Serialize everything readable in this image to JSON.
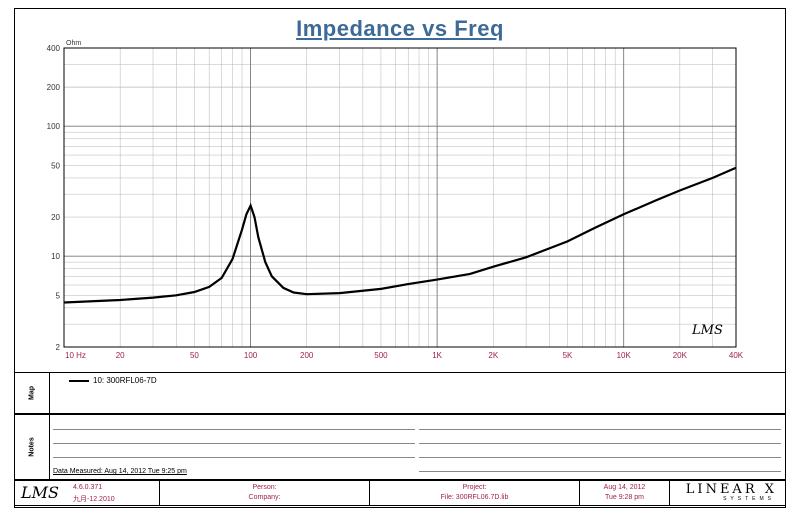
{
  "chart_data": {
    "type": "line",
    "title": "Impedance vs Freq",
    "ylabel_unit": "Ohm",
    "x_scale": "log",
    "y_scale": "log",
    "xlim": [
      10,
      40000
    ],
    "ylim": [
      2,
      400
    ],
    "grid": true,
    "x_ticks": [
      {
        "v": 10,
        "label": "10 Hz"
      },
      {
        "v": 20,
        "label": "20"
      },
      {
        "v": 50,
        "label": "50"
      },
      {
        "v": 100,
        "label": "100"
      },
      {
        "v": 200,
        "label": "200"
      },
      {
        "v": 500,
        "label": "500"
      },
      {
        "v": 1000,
        "label": "1K"
      },
      {
        "v": 2000,
        "label": "2K"
      },
      {
        "v": 5000,
        "label": "5K"
      },
      {
        "v": 10000,
        "label": "10K"
      },
      {
        "v": 20000,
        "label": "20K"
      },
      {
        "v": 40000,
        "label": "40K"
      }
    ],
    "y_ticks": [
      {
        "v": 400,
        "label": "400"
      },
      {
        "v": 200,
        "label": "200"
      },
      {
        "v": 100,
        "label": "100"
      },
      {
        "v": 50,
        "label": "50"
      },
      {
        "v": 20,
        "label": "20"
      },
      {
        "v": 10,
        "label": "10"
      },
      {
        "v": 5,
        "label": "5"
      },
      {
        "v": 2,
        "label": "2"
      }
    ],
    "series": [
      {
        "name": "10: 300RFL06-7D",
        "color": "#000000",
        "x": [
          10,
          20,
          30,
          40,
          50,
          60,
          70,
          80,
          90,
          95,
          100,
          105,
          110,
          120,
          130,
          150,
          170,
          200,
          300,
          500,
          700,
          1000,
          1500,
          2000,
          3000,
          5000,
          7000,
          10000,
          15000,
          20000,
          30000,
          40000
        ],
        "y": [
          4.4,
          4.6,
          4.8,
          5.0,
          5.3,
          5.8,
          6.8,
          9.5,
          16,
          21,
          24.5,
          20,
          14,
          9,
          7,
          5.7,
          5.25,
          5.1,
          5.2,
          5.6,
          6.1,
          6.6,
          7.3,
          8.3,
          9.8,
          13,
          16.5,
          21,
          27,
          32,
          40,
          48
        ]
      }
    ]
  },
  "legend": {
    "label": "10: 300RFL06-7D"
  },
  "panels": {
    "map_label": "Map",
    "notes_label": "Notes",
    "data_measured": "Data Measured: Aug 14, 2012  Tue  9:25 pm"
  },
  "footer": {
    "logo": "LMS",
    "version": "4.6.0.371",
    "version_date": "九月-12.2010",
    "person_label": "Person:",
    "company_label": "Company:",
    "project_label": "Project:",
    "file_label": "File: 300RFL06.7D.lib",
    "date": "Aug 14, 2012",
    "time": "Tue  9:28 pm",
    "brand": "LINEAR X",
    "brand_sub": "SYSTEMS"
  },
  "watermark": "LMS"
}
